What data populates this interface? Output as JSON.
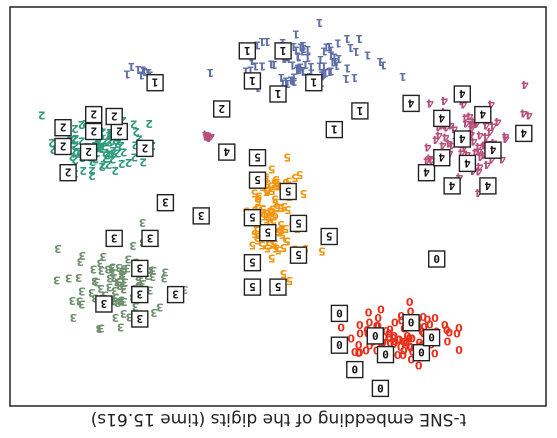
{
  "chart_data": {
    "type": "scatter",
    "title": "t-SNE embedding of the digits (time 15.61s)",
    "rendering": "upside-down (rotated 180 degrees)",
    "xlim": [
      0,
      1
    ],
    "ylim": [
      0,
      1
    ],
    "grid": false,
    "legend": "none",
    "marker": "digit glyph",
    "colors": {
      "0": "#e8301c",
      "1": "#5f6fa8",
      "2": "#2f9a7c",
      "3": "#6f8f6f",
      "4": "#b8507c",
      "5": "#f2950f"
    },
    "clusters": [
      {
        "digit": "0",
        "center": [
          0.26,
          0.84
        ],
        "spread": [
          0.1,
          0.06
        ],
        "count": 90
      },
      {
        "digit": "5",
        "center": [
          0.51,
          0.53
        ],
        "spread": [
          0.05,
          0.14
        ],
        "count": 95
      },
      {
        "digit": "3",
        "center": [
          0.81,
          0.71
        ],
        "spread": [
          0.08,
          0.09
        ],
        "count": 85
      },
      {
        "digit": "2",
        "center": [
          0.85,
          0.34
        ],
        "spread": [
          0.09,
          0.06
        ],
        "count": 95
      },
      {
        "digit": "4",
        "center": [
          0.13,
          0.3
        ],
        "spread": [
          0.09,
          0.09
        ],
        "count": 80
      },
      {
        "digit": "1",
        "center": [
          0.46,
          0.12
        ],
        "spread": [
          0.13,
          0.06
        ],
        "count": 85
      },
      {
        "digit": "1",
        "center": [
          0.76,
          0.14
        ],
        "spread": [
          0.02,
          0.015
        ],
        "count": 10
      },
      {
        "digit": "4",
        "center": [
          0.63,
          0.31
        ],
        "spread": [
          0.015,
          0.01
        ],
        "count": 5
      }
    ],
    "thumbnails": [
      {
        "digit": "0",
        "x": 0.3,
        "y": 0.985
      },
      {
        "digit": "0",
        "x": 0.35,
        "y": 0.935
      },
      {
        "digit": "0",
        "x": 0.22,
        "y": 0.89
      },
      {
        "digit": "0",
        "x": 0.29,
        "y": 0.895
      },
      {
        "digit": "0",
        "x": 0.38,
        "y": 0.87
      },
      {
        "digit": "0",
        "x": 0.31,
        "y": 0.845
      },
      {
        "digit": "0",
        "x": 0.24,
        "y": 0.81
      },
      {
        "digit": "0",
        "x": 0.38,
        "y": 0.785
      },
      {
        "digit": "0",
        "x": 0.19,
        "y": 0.64
      },
      {
        "digit": "5",
        "x": 0.5,
        "y": 0.715
      },
      {
        "digit": "5",
        "x": 0.55,
        "y": 0.715
      },
      {
        "digit": "5",
        "x": 0.55,
        "y": 0.65
      },
      {
        "digit": "5",
        "x": 0.46,
        "y": 0.63
      },
      {
        "digit": "5",
        "x": 0.52,
        "y": 0.57
      },
      {
        "digit": "5",
        "x": 0.4,
        "y": 0.58
      },
      {
        "digit": "5",
        "x": 0.46,
        "y": 0.545
      },
      {
        "digit": "5",
        "x": 0.55,
        "y": 0.53
      },
      {
        "digit": "5",
        "x": 0.48,
        "y": 0.46
      },
      {
        "digit": "5",
        "x": 0.54,
        "y": 0.43
      },
      {
        "digit": "5",
        "x": 0.54,
        "y": 0.37
      },
      {
        "digit": "3",
        "x": 0.77,
        "y": 0.8
      },
      {
        "digit": "3",
        "x": 0.84,
        "y": 0.76
      },
      {
        "digit": "3",
        "x": 0.7,
        "y": 0.735
      },
      {
        "digit": "3",
        "x": 0.77,
        "y": 0.735
      },
      {
        "digit": "3",
        "x": 0.77,
        "y": 0.665
      },
      {
        "digit": "3",
        "x": 0.82,
        "y": 0.585
      },
      {
        "digit": "3",
        "x": 0.75,
        "y": 0.585
      },
      {
        "digit": "3",
        "x": 0.65,
        "y": 0.525
      },
      {
        "digit": "3",
        "x": 0.72,
        "y": 0.49
      },
      {
        "digit": "2",
        "x": 0.91,
        "y": 0.41
      },
      {
        "digit": "2",
        "x": 0.76,
        "y": 0.345
      },
      {
        "digit": "2",
        "x": 0.87,
        "y": 0.355
      },
      {
        "digit": "2",
        "x": 0.92,
        "y": 0.34
      },
      {
        "digit": "2",
        "x": 0.81,
        "y": 0.3
      },
      {
        "digit": "2",
        "x": 0.86,
        "y": 0.3
      },
      {
        "digit": "2",
        "x": 0.92,
        "y": 0.29
      },
      {
        "digit": "2",
        "x": 0.82,
        "y": 0.26
      },
      {
        "digit": "2",
        "x": 0.86,
        "y": 0.255
      },
      {
        "digit": "4",
        "x": 0.09,
        "y": 0.445
      },
      {
        "digit": "4",
        "x": 0.16,
        "y": 0.445
      },
      {
        "digit": "4",
        "x": 0.21,
        "y": 0.41
      },
      {
        "digit": "4",
        "x": 0.13,
        "y": 0.385
      },
      {
        "digit": "4",
        "x": 0.18,
        "y": 0.37
      },
      {
        "digit": "4",
        "x": 0.08,
        "y": 0.35
      },
      {
        "digit": "4",
        "x": 0.14,
        "y": 0.32
      },
      {
        "digit": "4",
        "x": 0.02,
        "y": 0.305
      },
      {
        "digit": "4",
        "x": 0.1,
        "y": 0.255
      },
      {
        "digit": "4",
        "x": 0.18,
        "y": 0.265
      },
      {
        "digit": "4",
        "x": 0.24,
        "y": 0.225
      },
      {
        "digit": "4",
        "x": 0.14,
        "y": 0.2
      },
      {
        "digit": "4",
        "x": 0.6,
        "y": 0.355
      },
      {
        "digit": "1",
        "x": 0.39,
        "y": 0.295
      },
      {
        "digit": "1",
        "x": 0.34,
        "y": 0.245
      },
      {
        "digit": "1",
        "x": 0.5,
        "y": 0.2
      },
      {
        "digit": "1",
        "x": 0.43,
        "y": 0.17
      },
      {
        "digit": "1",
        "x": 0.55,
        "y": 0.165
      },
      {
        "digit": "1",
        "x": 0.49,
        "y": 0.085
      },
      {
        "digit": "1",
        "x": 0.56,
        "y": 0.085
      },
      {
        "digit": "1",
        "x": 0.74,
        "y": 0.17
      },
      {
        "digit": "2",
        "x": 0.61,
        "y": 0.24
      },
      {
        "digit": "0",
        "x": 0.2,
        "y": 0.85
      }
    ]
  }
}
